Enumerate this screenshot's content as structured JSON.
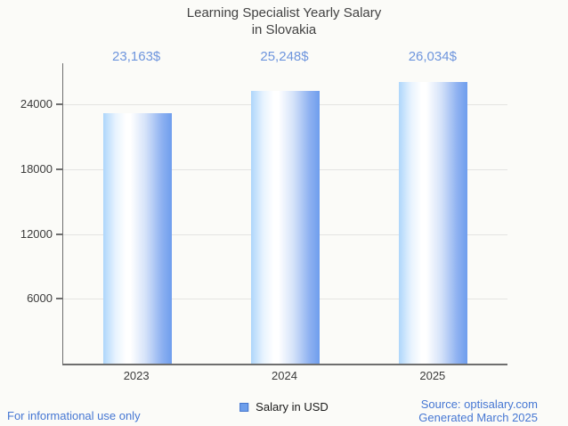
{
  "title": {
    "line1": "Learning Specialist Yearly Salary",
    "line2": "in Slovakia"
  },
  "chart_data": {
    "type": "bar",
    "title": "Learning Specialist Yearly Salary in Slovakia",
    "categories": [
      "2023",
      "2024",
      "2025"
    ],
    "values": [
      23163,
      25248,
      26034
    ],
    "value_labels": [
      "23,163$",
      "25,248$",
      "26,034$"
    ],
    "series_name": "Salary in USD",
    "xlabel": "",
    "ylabel": "",
    "yticks": [
      6000,
      12000,
      18000,
      24000
    ],
    "ylim": [
      0,
      27800
    ],
    "grid": true,
    "legend_position": "bottom-center",
    "bar_style": "horizontal-gradient light-blue to white to medium-blue"
  },
  "legend": {
    "label": "Salary in USD"
  },
  "footer": {
    "left": "For informational use only",
    "source": "Source: optisalary.com",
    "generated": "Generated March 2025"
  },
  "colors": {
    "background": "#FBFBF8",
    "title_text": "#424242",
    "axis": "#6E6E6E",
    "gridline": "#E4E4E2",
    "tick_text": "#3B3B3B",
    "value_label_blue": "#6E95DD",
    "footer_blue": "#4677D3",
    "bar_gradient_left": "#AED6FB",
    "bar_gradient_middle": "#FFFFFF",
    "bar_gradient_right": "#6E9DED",
    "legend_swatch_fill": "#6D9EEB",
    "legend_swatch_border": "#4576CD"
  }
}
